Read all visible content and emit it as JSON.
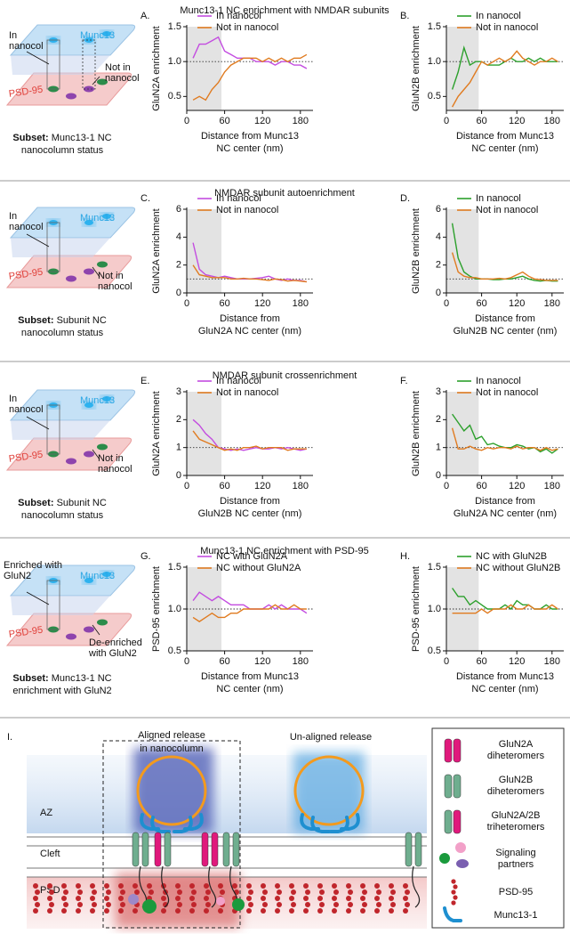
{
  "sections": [
    {
      "title": "Munc13-1 NC enrichment with NMDAR subunits",
      "schematic": {
        "top": "Munc13",
        "bottom": "PSD-95",
        "labels": [
          [
            "In",
            "nanocol"
          ],
          [
            "Not in",
            "nanocol"
          ]
        ],
        "subset_label": "Subset:",
        "subset": [
          "Munc13-1 NC",
          "nanocolumn status"
        ]
      }
    },
    {
      "title": "NMDAR subunit autoenrichment",
      "schematic": {
        "top": "Munc13",
        "bottom": "PSD-95",
        "labels": [
          [
            "In",
            "nanocol"
          ],
          [
            "Not in",
            "nanocol"
          ]
        ],
        "subset_label": "Subset:",
        "subset": [
          "Subunit NC",
          "nanocolumn status"
        ]
      }
    },
    {
      "title": "NMDAR subunit crossenrichment",
      "schematic": {
        "top": "Munc13",
        "bottom": "PSD-95",
        "labels": [
          [
            "In",
            "nanocol"
          ],
          [
            "Not in",
            "nanocol"
          ]
        ],
        "subset_label": "Subset:",
        "subset": [
          "Subunit NC",
          "nanocolumn status"
        ]
      }
    },
    {
      "title": "Munc13-1 NC enrichment with PSD-95",
      "schematic": {
        "top": "Munc13",
        "bottom": "PSD-95",
        "labels": [
          [
            "Enriched with",
            "GluN2"
          ],
          [
            "De-enriched",
            "with GluN2"
          ]
        ],
        "subset_label": "Subset:",
        "subset": [
          "Munc13-1 NC",
          "enrichment with GluN2"
        ]
      }
    }
  ],
  "chart_data": [
    {
      "type": "line",
      "panel": "A.",
      "ylabel": "GluN2A enrichment",
      "xlabel": [
        "Distance from Munc13",
        "NC center (nm)"
      ],
      "x": [
        10,
        20,
        30,
        40,
        50,
        60,
        70,
        80,
        90,
        100,
        110,
        120,
        130,
        140,
        150,
        160,
        170,
        180,
        190
      ],
      "series": [
        {
          "name": "In nanocol",
          "color": "#c34ce0",
          "values": [
            1.05,
            1.25,
            1.25,
            1.3,
            1.35,
            1.15,
            1.1,
            1.05,
            1.05,
            1.05,
            1.0,
            1.0,
            1.0,
            0.95,
            1.0,
            1.0,
            0.95,
            0.95,
            0.9
          ]
        },
        {
          "name": "Not in nanocol",
          "color": "#e07b20",
          "values": [
            0.45,
            0.5,
            0.45,
            0.6,
            0.7,
            0.85,
            0.95,
            1.0,
            1.05,
            1.05,
            1.05,
            1.0,
            1.05,
            1.0,
            1.05,
            1.0,
            1.05,
            1.05,
            1.1
          ]
        }
      ],
      "xlim": [
        0,
        200
      ],
      "xticks": [
        0,
        60,
        120,
        180
      ],
      "ylim": [
        0.3,
        1.5
      ],
      "yticks": [
        {
          "value": 0.5,
          "label": "0.5"
        },
        {
          "value": 1,
          "label": "1.0"
        },
        {
          "value": 1.5,
          "label": "1.5"
        }
      ],
      "highlight": [
        0,
        55
      ],
      "refline": 1
    },
    {
      "type": "line",
      "panel": "B.",
      "ylabel": "GluN2B enrichment",
      "xlabel": [
        "Distance from Munc13",
        "NC center (nm)"
      ],
      "x": [
        10,
        20,
        30,
        40,
        50,
        60,
        70,
        80,
        90,
        100,
        110,
        120,
        130,
        140,
        150,
        160,
        170,
        180,
        190
      ],
      "series": [
        {
          "name": "In nanocol",
          "color": "#2ca02c",
          "values": [
            0.6,
            0.85,
            1.2,
            0.95,
            1.0,
            1.0,
            0.95,
            0.95,
            0.95,
            1.0,
            1.05,
            1.0,
            1.0,
            1.05,
            1.0,
            1.05,
            1.0,
            1.0,
            1.0
          ]
        },
        {
          "name": "Not in nanocol",
          "color": "#e07b20",
          "values": [
            0.35,
            0.5,
            0.6,
            0.7,
            0.85,
            1.0,
            0.95,
            1.0,
            1.05,
            1.0,
            1.05,
            1.15,
            1.05,
            1.0,
            0.95,
            1.0,
            1.0,
            1.05,
            1.0
          ]
        }
      ],
      "xlim": [
        0,
        200
      ],
      "xticks": [
        0,
        60,
        120,
        180
      ],
      "ylim": [
        0.3,
        1.5
      ],
      "yticks": [
        {
          "value": 0.5,
          "label": "0.5"
        },
        {
          "value": 1,
          "label": "1.0"
        },
        {
          "value": 1.5,
          "label": "1.5"
        }
      ],
      "highlight": [
        0,
        55
      ],
      "refline": 1
    },
    {
      "type": "line",
      "panel": "C.",
      "ylabel": "GluN2A enrichment",
      "xlabel": [
        "Distance from",
        "GluN2A NC center (nm)"
      ],
      "x": [
        10,
        20,
        30,
        40,
        50,
        60,
        70,
        80,
        90,
        100,
        110,
        120,
        130,
        140,
        150,
        160,
        170,
        180,
        190
      ],
      "series": [
        {
          "name": "In nanocol",
          "color": "#c34ce0",
          "values": [
            3.6,
            1.7,
            1.3,
            1.2,
            1.1,
            1.2,
            1.1,
            1.0,
            1.0,
            1.0,
            1.05,
            1.1,
            1.2,
            1.0,
            0.9,
            1.0,
            0.9,
            0.9,
            0.8
          ]
        },
        {
          "name": "Not in nanocol",
          "color": "#e07b20",
          "values": [
            2.0,
            1.3,
            1.2,
            1.1,
            1.1,
            1.1,
            1.0,
            1.0,
            1.05,
            1.0,
            1.0,
            0.95,
            0.9,
            1.0,
            0.95,
            0.85,
            0.9,
            0.85,
            0.8
          ]
        }
      ],
      "xlim": [
        0,
        200
      ],
      "xticks": [
        0,
        60,
        120,
        180
      ],
      "ylim": [
        0,
        6
      ],
      "yticks": [
        0,
        2,
        4,
        6
      ],
      "highlight": [
        0,
        55
      ],
      "refline": 1
    },
    {
      "type": "line",
      "panel": "D.",
      "ylabel": "GluN2B enrichment",
      "xlabel": [
        "Distance from",
        "GluN2B NC center (nm)"
      ],
      "x": [
        10,
        20,
        30,
        40,
        50,
        60,
        70,
        80,
        90,
        100,
        110,
        120,
        130,
        140,
        150,
        160,
        170,
        180,
        190
      ],
      "series": [
        {
          "name": "In nanocol",
          "color": "#2ca02c",
          "values": [
            5.0,
            2.5,
            1.5,
            1.2,
            1.0,
            1.0,
            1.0,
            0.95,
            0.95,
            1.0,
            1.0,
            1.1,
            1.2,
            1.0,
            0.9,
            0.85,
            0.9,
            0.85,
            0.85
          ]
        },
        {
          "name": "Not in nanocol",
          "color": "#e07b20",
          "values": [
            2.9,
            1.5,
            1.2,
            1.1,
            1.1,
            1.0,
            1.0,
            1.0,
            1.05,
            1.0,
            1.1,
            1.3,
            1.5,
            1.2,
            1.0,
            0.95,
            0.9,
            0.9,
            0.9
          ]
        }
      ],
      "xlim": [
        0,
        200
      ],
      "xticks": [
        0,
        60,
        120,
        180
      ],
      "ylim": [
        0,
        6
      ],
      "yticks": [
        0,
        2,
        4,
        6
      ],
      "highlight": [
        0,
        55
      ],
      "refline": 1
    },
    {
      "type": "line",
      "panel": "E.",
      "ylabel": "GluN2A enrichment",
      "xlabel": [
        "Distance from",
        "GluN2B NC center (nm)"
      ],
      "x": [
        10,
        20,
        30,
        40,
        50,
        60,
        70,
        80,
        90,
        100,
        110,
        120,
        130,
        140,
        150,
        160,
        170,
        180,
        190
      ],
      "series": [
        {
          "name": "In nanocol",
          "color": "#c34ce0",
          "values": [
            2.0,
            1.8,
            1.5,
            1.3,
            1.0,
            0.95,
            0.9,
            0.95,
            0.9,
            0.95,
            1.0,
            0.95,
            0.95,
            1.0,
            0.95,
            1.0,
            0.95,
            0.9,
            0.95
          ]
        },
        {
          "name": "Not in nanocol",
          "color": "#e07b20",
          "values": [
            1.6,
            1.3,
            1.2,
            1.1,
            1.0,
            0.9,
            0.95,
            0.9,
            1.0,
            1.0,
            1.05,
            0.95,
            1.0,
            1.0,
            1.0,
            0.9,
            0.95,
            0.95,
            0.95
          ]
        }
      ],
      "xlim": [
        0,
        200
      ],
      "xticks": [
        0,
        60,
        120,
        180
      ],
      "ylim": [
        0,
        3
      ],
      "yticks": [
        0,
        1,
        2,
        3
      ],
      "highlight": [
        0,
        55
      ],
      "refline": 1
    },
    {
      "type": "line",
      "panel": "F.",
      "ylabel": "GluN2B enrichment",
      "xlabel": [
        "Distance from",
        "GluN2A NC center (nm)"
      ],
      "x": [
        10,
        20,
        30,
        40,
        50,
        60,
        70,
        80,
        90,
        100,
        110,
        120,
        130,
        140,
        150,
        160,
        170,
        180,
        190
      ],
      "series": [
        {
          "name": "In nanocol",
          "color": "#2ca02c",
          "values": [
            2.2,
            1.9,
            1.6,
            1.8,
            1.3,
            1.4,
            1.1,
            1.15,
            1.05,
            1.0,
            1.0,
            1.1,
            1.05,
            0.95,
            1.0,
            0.85,
            0.95,
            0.8,
            0.95
          ]
        },
        {
          "name": "Not in nanocol",
          "color": "#e07b20",
          "values": [
            1.7,
            0.95,
            0.95,
            1.05,
            0.95,
            0.9,
            1.0,
            0.95,
            1.0,
            1.0,
            0.95,
            1.05,
            0.95,
            1.0,
            1.0,
            0.9,
            1.0,
            0.9,
            0.95
          ]
        }
      ],
      "xlim": [
        0,
        200
      ],
      "xticks": [
        0,
        60,
        120,
        180
      ],
      "ylim": [
        0,
        3
      ],
      "yticks": [
        0,
        1,
        2,
        3
      ],
      "highlight": [
        0,
        55
      ],
      "refline": 1
    },
    {
      "type": "line",
      "panel": "G.",
      "ylabel": "PSD-95 enrichment",
      "xlabel": [
        "Distance from Munc13",
        "NC center (nm)"
      ],
      "x": [
        10,
        20,
        30,
        40,
        50,
        60,
        70,
        80,
        90,
        100,
        110,
        120,
        130,
        140,
        150,
        160,
        170,
        180,
        190
      ],
      "series": [
        {
          "name": "NC with GluN2A",
          "color": "#c34ce0",
          "values": [
            1.1,
            1.2,
            1.15,
            1.1,
            1.15,
            1.1,
            1.05,
            1.05,
            1.05,
            1.0,
            1.0,
            1.0,
            1.05,
            1.0,
            1.05,
            1.0,
            1.0,
            1.0,
            0.95
          ]
        },
        {
          "name": "NC without GluN2A",
          "color": "#e07b20",
          "values": [
            0.9,
            0.85,
            0.9,
            0.95,
            0.9,
            0.9,
            0.95,
            0.95,
            1.0,
            1.0,
            1.0,
            1.0,
            1.0,
            1.05,
            1.0,
            1.0,
            1.05,
            1.0,
            1.0
          ]
        }
      ],
      "xlim": [
        0,
        200
      ],
      "xticks": [
        0,
        60,
        120,
        180
      ],
      "ylim": [
        0.5,
        1.5
      ],
      "yticks": [
        {
          "value": 0.5,
          "label": "0.5"
        },
        {
          "value": 1,
          "label": "1.0"
        },
        {
          "value": 1.5,
          "label": "1.5"
        }
      ],
      "highlight": [
        0,
        55
      ],
      "refline": 1
    },
    {
      "type": "line",
      "panel": "H.",
      "ylabel": "PSD-95 enrichment",
      "xlabel": [
        "Distance from Munc13",
        "NC center (nm)"
      ],
      "x": [
        10,
        20,
        30,
        40,
        50,
        60,
        70,
        80,
        90,
        100,
        110,
        120,
        130,
        140,
        150,
        160,
        170,
        180,
        190
      ],
      "series": [
        {
          "name": "NC with GluN2B",
          "color": "#2ca02c",
          "values": [
            1.25,
            1.15,
            1.15,
            1.05,
            1.1,
            1.05,
            1.0,
            1.0,
            1.0,
            1.05,
            1.0,
            1.1,
            1.05,
            1.05,
            1.0,
            1.0,
            1.05,
            1.0,
            1.0
          ]
        },
        {
          "name": "NC without GluN2B",
          "color": "#e07b20",
          "values": [
            0.95,
            0.95,
            0.95,
            0.95,
            0.95,
            1.0,
            0.95,
            1.0,
            1.0,
            1.0,
            1.05,
            1.0,
            1.0,
            1.05,
            1.0,
            1.0,
            1.0,
            1.05,
            1.0
          ]
        }
      ],
      "xlim": [
        0,
        200
      ],
      "xticks": [
        0,
        60,
        120,
        180
      ],
      "ylim": [
        0.5,
        1.5
      ],
      "yticks": [
        {
          "value": 0.5,
          "label": "0.5"
        },
        {
          "value": 1,
          "label": "1.0"
        },
        {
          "value": 1.5,
          "label": "1.5"
        }
      ],
      "highlight": [
        0,
        55
      ],
      "refline": 1
    }
  ],
  "panel_i": {
    "label": "I.",
    "aligned": [
      "Aligned release",
      "in nanocolumn"
    ],
    "unaligned": "Un-aligned release",
    "layers": [
      "AZ",
      "Cleft",
      "PSD"
    ],
    "legend": [
      [
        "GluN2A",
        "diheteromers"
      ],
      [
        "GluN2B",
        "diheteromers"
      ],
      [
        "GluN2A/2B",
        "triheteromers"
      ],
      [
        "Signaling",
        "partners"
      ],
      [
        "PSD-95"
      ],
      [
        "Munc13-1"
      ]
    ]
  }
}
